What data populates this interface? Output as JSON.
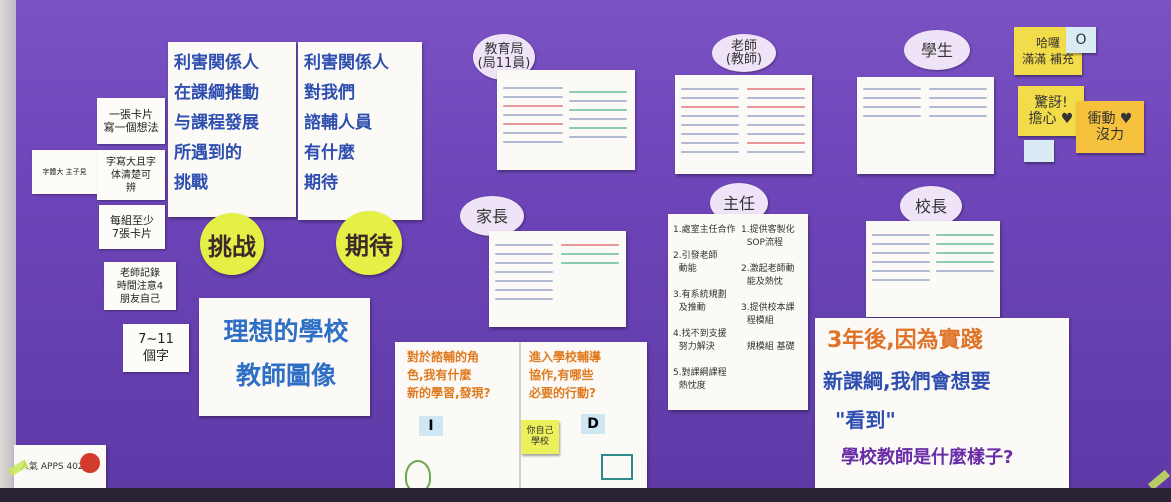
{
  "board": {
    "left_notes": {
      "card": "一張卡片\n寫一個想法",
      "big_char": "字寫大且字\n体清楚可\n辨",
      "min_cards": "每組至少\n7張卡片",
      "teacher": "老師記錄\n時間注意4\n朋友自己",
      "chars": "7~11\n個字",
      "small": "字體大 主子見"
    },
    "challenge_poster": "利害関係人\n在課綱推動\n与課程發展\n所遇到的\n挑戰",
    "expect_poster": "利害関係人\n對我們\n諮輔人員\n有什麼\n期待",
    "circle_challenge": "挑战",
    "circle_expect": "期待",
    "ideal_poster": "理想的學校\n教師圖像",
    "ovals": {
      "bureau": "教育局\n(局11員)",
      "teacher": "老師\n(教師)",
      "student": "學生",
      "parent": "家長",
      "director": "主任",
      "principal": "校長"
    },
    "director_chart": {
      "left": "1.處室主任合作\n\n2.引發老師\n  動能\n\n3.有系統規劃\n  及推動\n\n4.找不到支援\n  努力解決\n\n5.對課綱課程\n  熱忱度",
      "right": "1.提供客製化\n  SOP流程\n\n2.激起老師動\n  能及熱忱\n\n3.提供校本課\n  程模組\n\n  規模組 基礎"
    },
    "reflect_left": "對於諮輔的角\n色,我有什麼\n新的學習,發現?",
    "reflect_left_box": "I",
    "reflect_right": "進入學校輔導\n協作,有哪些\n必要的行動?",
    "reflect_right_box": "D",
    "reflect_sticky": "你自己\n學校",
    "future_poster": {
      "line1": "3年後,因為實踐",
      "line2": "新課綱,我們會想要",
      "line3": "\"看到\"",
      "line4": "學校教師是什麼樣子?"
    },
    "stickies": {
      "s1": "哈囉\n滿滿 補充",
      "s2": "O",
      "s3": "驚訝!\n擔心 ♥",
      "s4": "衝動 ♥\n沒力"
    },
    "bottom_logo": "人氣 APPS 402"
  },
  "colors": {
    "purple_backdrop": "#6c46b4",
    "yellow_sticky": "#f3dc4a",
    "orange_sticky": "#f6c13c",
    "circle_yellow": "#e5f046",
    "heading_blue": "#2f4fb0"
  }
}
